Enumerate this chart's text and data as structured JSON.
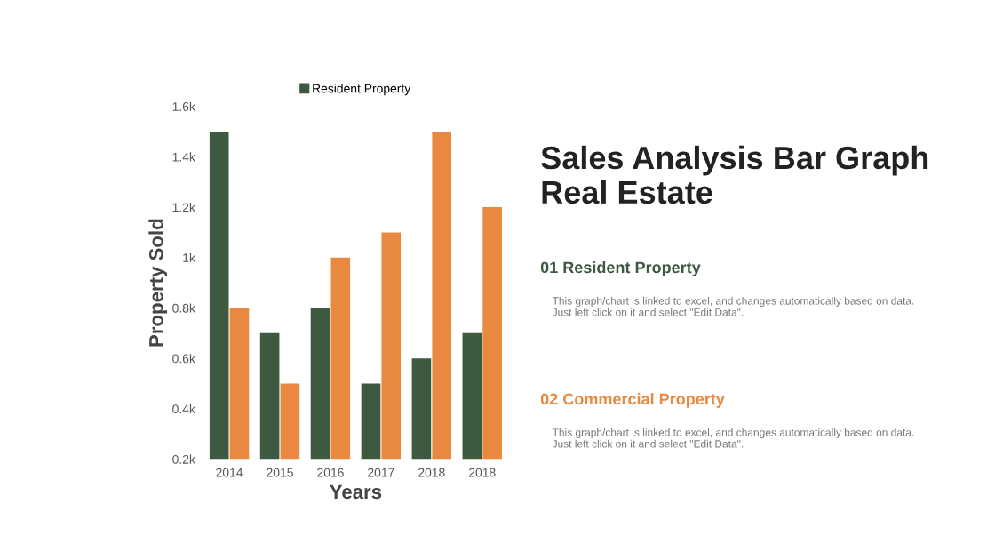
{
  "chart_data": {
    "type": "bar",
    "title": "Sales Analysis Bar Graph Real Estate",
    "xlabel": "Years",
    "ylabel": "Property Sold",
    "categories": [
      "2014",
      "2015",
      "2016",
      "2017",
      "2018",
      "2018"
    ],
    "series": [
      {
        "name": "Resident Property",
        "color": "#3d5a40",
        "values": [
          1500,
          700,
          800,
          500,
          600,
          700
        ]
      },
      {
        "color": "#e8893f",
        "values": [
          800,
          500,
          1000,
          1100,
          1500,
          1200
        ]
      }
    ],
    "ylim": [
      200,
      1600
    ],
    "yticks": [
      {
        "value": 200,
        "label": "0.2k"
      },
      {
        "value": 400,
        "label": "0.4k"
      },
      {
        "value": 600,
        "label": "0.6k"
      },
      {
        "value": 800,
        "label": "0.8k"
      },
      {
        "value": 1000,
        "label": "1k"
      },
      {
        "value": 1200,
        "label": "1.2k"
      },
      {
        "value": 1400,
        "label": "1.4k"
      },
      {
        "value": 1600,
        "label": "1.6k"
      }
    ],
    "legend": "top",
    "annotations": [
      "01 Resident Property",
      "This graph/chart is linked to excel, and changes automatically based on data. Just left click on it and select \"Edit Data\".",
      "02 Commercial Property",
      "This graph/chart is linked to excel, and changes automatically based on data. Just left click on it and select \"Edit Data\"."
    ]
  }
}
